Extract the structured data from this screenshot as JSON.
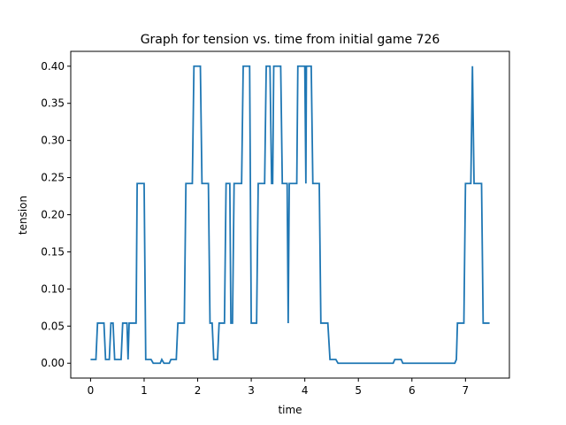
{
  "chart_data": {
    "type": "line",
    "title": "Graph for tension vs. time from initial game 726",
    "xlabel": "time",
    "ylabel": "tension",
    "xlim": [
      -0.37,
      7.82
    ],
    "ylim": [
      -0.02,
      0.42
    ],
    "xticks": [
      0,
      1,
      2,
      3,
      4,
      5,
      6,
      7
    ],
    "yticks": [
      0.0,
      0.05,
      0.1,
      0.15,
      0.2,
      0.25,
      0.3,
      0.35,
      0.4
    ],
    "xtick_labels": [
      "0",
      "1",
      "2",
      "3",
      "4",
      "5",
      "6",
      "7"
    ],
    "ytick_labels": [
      "0.00",
      "0.05",
      "0.10",
      "0.15",
      "0.20",
      "0.25",
      "0.30",
      "0.35",
      "0.40"
    ],
    "grid": false,
    "series": [
      {
        "name": "tension",
        "color": "#1f77b4",
        "points": [
          [
            0.0,
            0.005
          ],
          [
            0.1,
            0.005
          ],
          [
            0.13,
            0.054
          ],
          [
            0.25,
            0.054
          ],
          [
            0.28,
            0.005
          ],
          [
            0.35,
            0.005
          ],
          [
            0.38,
            0.054
          ],
          [
            0.42,
            0.054
          ],
          [
            0.45,
            0.005
          ],
          [
            0.57,
            0.005
          ],
          [
            0.6,
            0.054
          ],
          [
            0.68,
            0.054
          ],
          [
            0.7,
            0.005
          ],
          [
            0.72,
            0.054
          ],
          [
            0.85,
            0.054
          ],
          [
            0.87,
            0.242
          ],
          [
            1.0,
            0.242
          ],
          [
            1.03,
            0.005
          ],
          [
            1.13,
            0.005
          ],
          [
            1.17,
            0.0
          ],
          [
            1.3,
            0.0
          ],
          [
            1.33,
            0.005
          ],
          [
            1.37,
            0.0
          ],
          [
            1.47,
            0.0
          ],
          [
            1.5,
            0.005
          ],
          [
            1.6,
            0.005
          ],
          [
            1.63,
            0.054
          ],
          [
            1.75,
            0.054
          ],
          [
            1.78,
            0.242
          ],
          [
            1.9,
            0.242
          ],
          [
            1.93,
            0.4
          ],
          [
            2.05,
            0.4
          ],
          [
            2.08,
            0.242
          ],
          [
            2.2,
            0.242
          ],
          [
            2.23,
            0.054
          ],
          [
            2.27,
            0.054
          ],
          [
            2.3,
            0.005
          ],
          [
            2.37,
            0.005
          ],
          [
            2.4,
            0.054
          ],
          [
            2.5,
            0.054
          ],
          [
            2.53,
            0.242
          ],
          [
            2.6,
            0.242
          ],
          [
            2.62,
            0.054
          ],
          [
            2.65,
            0.054
          ],
          [
            2.68,
            0.242
          ],
          [
            2.82,
            0.242
          ],
          [
            2.85,
            0.4
          ],
          [
            2.97,
            0.4
          ],
          [
            3.0,
            0.054
          ],
          [
            3.1,
            0.054
          ],
          [
            3.13,
            0.242
          ],
          [
            3.25,
            0.242
          ],
          [
            3.28,
            0.4
          ],
          [
            3.35,
            0.4
          ],
          [
            3.38,
            0.242
          ],
          [
            3.4,
            0.242
          ],
          [
            3.42,
            0.4
          ],
          [
            3.55,
            0.4
          ],
          [
            3.58,
            0.242
          ],
          [
            3.67,
            0.242
          ],
          [
            3.69,
            0.054
          ],
          [
            3.71,
            0.242
          ],
          [
            3.85,
            0.242
          ],
          [
            3.87,
            0.4
          ],
          [
            4.0,
            0.4
          ],
          [
            4.02,
            0.242
          ],
          [
            4.03,
            0.4
          ],
          [
            4.12,
            0.4
          ],
          [
            4.15,
            0.242
          ],
          [
            4.27,
            0.242
          ],
          [
            4.3,
            0.054
          ],
          [
            4.43,
            0.054
          ],
          [
            4.47,
            0.005
          ],
          [
            4.58,
            0.005
          ],
          [
            4.62,
            0.0
          ],
          [
            5.65,
            0.0
          ],
          [
            5.68,
            0.005
          ],
          [
            5.8,
            0.005
          ],
          [
            5.83,
            0.0
          ],
          [
            6.8,
            0.0
          ],
          [
            6.83,
            0.005
          ],
          [
            6.85,
            0.054
          ],
          [
            6.97,
            0.054
          ],
          [
            7.0,
            0.242
          ],
          [
            7.1,
            0.242
          ],
          [
            7.13,
            0.4
          ],
          [
            7.16,
            0.242
          ],
          [
            7.3,
            0.242
          ],
          [
            7.33,
            0.054
          ],
          [
            7.45,
            0.054
          ]
        ]
      }
    ]
  }
}
